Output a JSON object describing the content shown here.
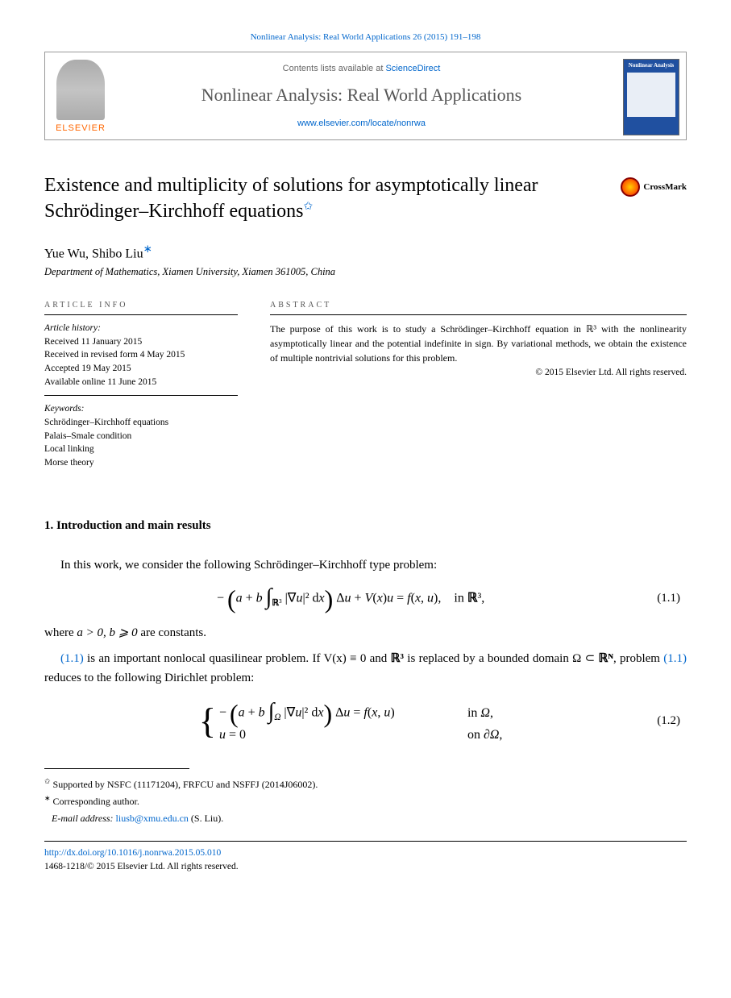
{
  "citation": "Nonlinear Analysis: Real World Applications 26 (2015) 191–198",
  "header": {
    "contents_prefix": "Contents lists available at ",
    "contents_link": "ScienceDirect",
    "journal": "Nonlinear Analysis: Real World Applications",
    "homepage": "www.elsevier.com/locate/nonrwa",
    "publisher": "ELSEVIER",
    "cover_title": "Nonlinear Analysis"
  },
  "title": "Existence and multiplicity of solutions for asymptotically linear Schrödinger–Kirchhoff equations",
  "title_note_marker": "✩",
  "crossmark": "CrossMark",
  "authors_line": "Yue Wu, Shibo Liu",
  "corr_marker": "∗",
  "affiliation": "Department of Mathematics, Xiamen University, Xiamen 361005, China",
  "info": {
    "label": "article info",
    "history_title": "Article history:",
    "history": [
      "Received 11 January 2015",
      "Received in revised form 4 May 2015",
      "Accepted 19 May 2015",
      "Available online 11 June 2015"
    ],
    "keywords_title": "Keywords:",
    "keywords": [
      "Schrödinger–Kirchhoff equations",
      "Palais–Smale condition",
      "Local linking",
      "Morse theory"
    ]
  },
  "abstract": {
    "label": "abstract",
    "text": "The purpose of this work is to study a Schrödinger–Kirchhoff equation in ℝ³ with the nonlinearity asymptotically linear and the potential indefinite in sign. By variational methods, we obtain the existence of multiple nontrivial solutions for this problem.",
    "copyright": "© 2015 Elsevier Ltd. All rights reserved."
  },
  "section1": {
    "heading": "1. Introduction and main results",
    "p1": "In this work, we consider the following Schrödinger–Kirchhoff type problem:",
    "eq11_num": "(1.1)",
    "p2_pre": "where ",
    "p2_math": "a > 0, b ⩾ 0",
    "p2_post": " are constants.",
    "p3_a": "(1.1)",
    "p3_b": " is an important nonlocal quasilinear problem. If V(x) ≡ 0 and ",
    "p3_c": "ℝ³",
    "p3_d": " is replaced by a bounded domain Ω ⊂ ",
    "p3_e": "ℝᴺ",
    "p3_f": ", problem ",
    "p3_g": "(1.1)",
    "p3_h": " reduces to the following Dirichlet problem:",
    "eq12_num": "(1.2)"
  },
  "footnotes": {
    "support": "Supported by NSFC (11171204), FRFCU and NSFFJ (2014J06002).",
    "corr": "Corresponding author.",
    "email_label": "E-mail address: ",
    "email": "liusb@xmu.edu.cn",
    "email_who": " (S. Liu)."
  },
  "footer": {
    "doi": "http://dx.doi.org/10.1016/j.nonrwa.2015.05.010",
    "issn_line": "1468-1218/© 2015 Elsevier Ltd. All rights reserved."
  },
  "colors": {
    "link": "#0066cc",
    "elsevier": "#ff6600",
    "text": "#000000"
  }
}
